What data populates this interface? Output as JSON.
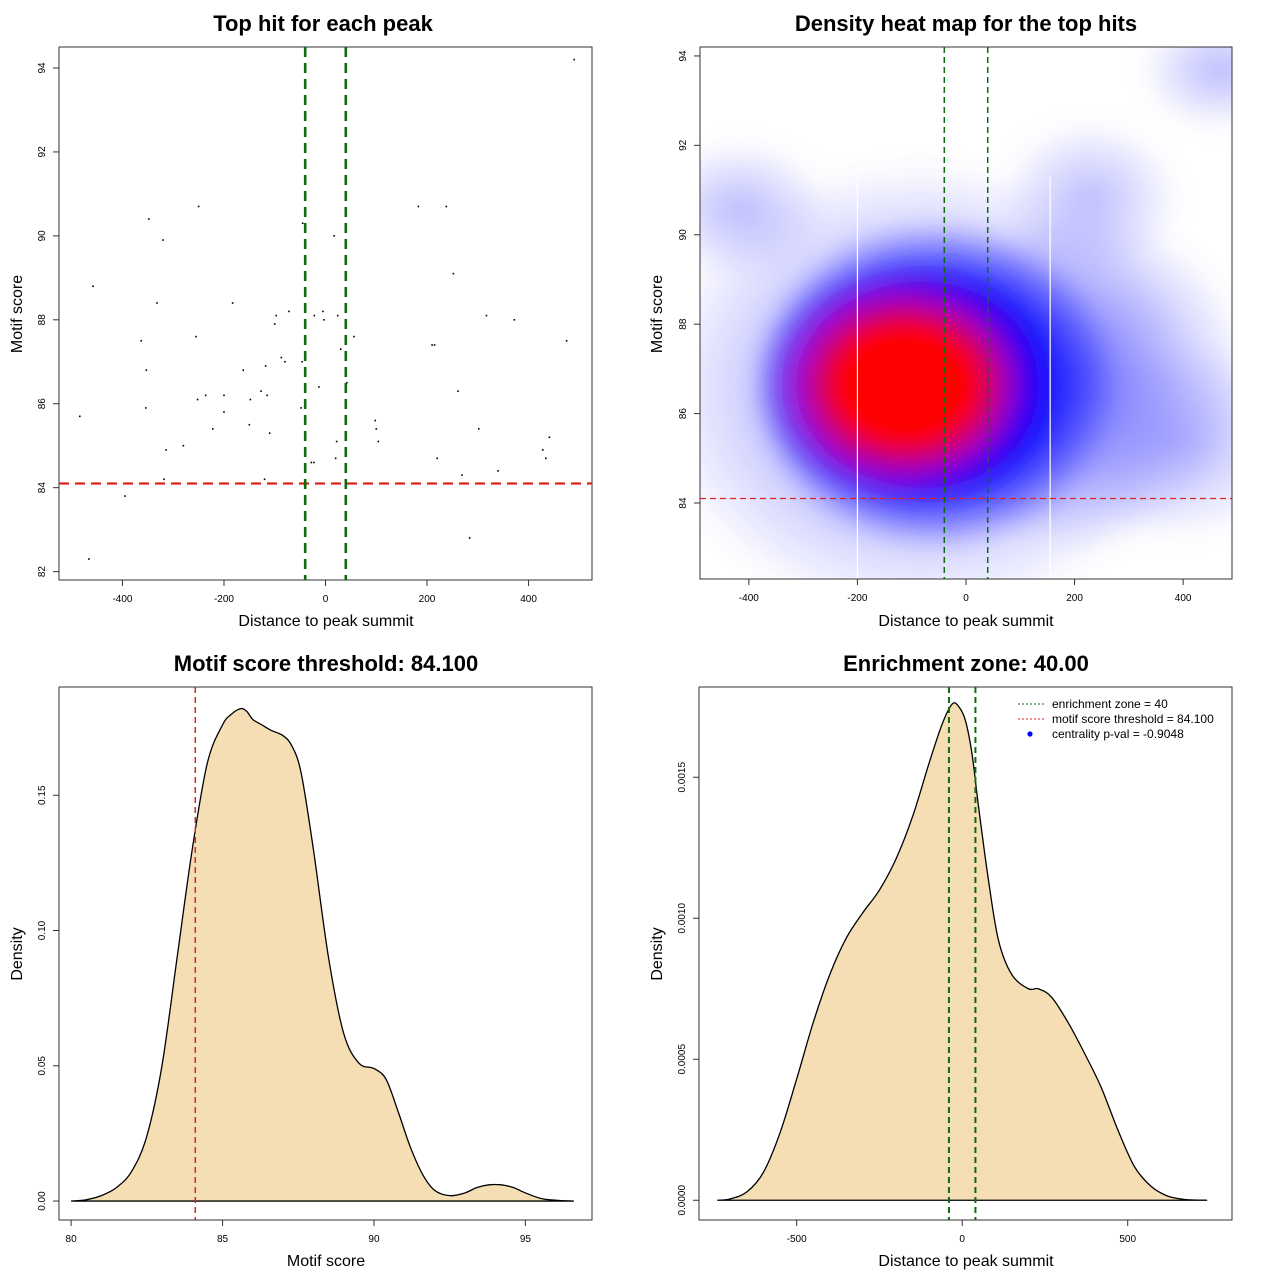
{
  "colors": {
    "threshold_line": "#dd2222",
    "zone_line": "#0f6b0f",
    "density_fill": "#f5deb3",
    "heat_low": "#ffffff",
    "heat_mid": "#0000ff",
    "heat_high": "#ff0000",
    "points": "#000000",
    "centrality_point": "#0000ff"
  },
  "chart_data": [
    {
      "type": "scatter",
      "title": "Top hit for each peak",
      "xlabel": "Distance to peak summit",
      "ylabel": "Motif score",
      "xlim": [
        -525,
        525
      ],
      "ylim": [
        81.8,
        94.5
      ],
      "xticks": [
        -400,
        -200,
        0,
        200,
        400
      ],
      "yticks": [
        82,
        84,
        86,
        88,
        90,
        92,
        94
      ],
      "xtick_labels": [
        "-400",
        "-200",
        "0",
        "200",
        "400"
      ],
      "ytick_labels": [
        "82",
        "84",
        "86",
        "88",
        "90",
        "92",
        "94"
      ],
      "hline": 84.1,
      "vlines": [
        -40,
        40
      ],
      "points": [
        [
          490,
          94.2
        ],
        [
          -250,
          90.7
        ],
        [
          183,
          90.7
        ],
        [
          238,
          90.7
        ],
        [
          -348,
          90.4
        ],
        [
          -320,
          89.9
        ],
        [
          17,
          90.0
        ],
        [
          -45,
          90.3
        ],
        [
          252,
          89.1
        ],
        [
          -458,
          88.8
        ],
        [
          -332,
          88.4
        ],
        [
          -183,
          88.4
        ],
        [
          -97,
          88.1
        ],
        [
          -100,
          87.9
        ],
        [
          -72,
          88.2
        ],
        [
          -22,
          88.1
        ],
        [
          -5,
          88.2
        ],
        [
          -3,
          88.0
        ],
        [
          24,
          88.1
        ],
        [
          56,
          87.6
        ],
        [
          317,
          88.1
        ],
        [
          372,
          88.0
        ],
        [
          -363,
          87.5
        ],
        [
          -255,
          87.6
        ],
        [
          -87,
          87.1
        ],
        [
          -80,
          87.0
        ],
        [
          -46,
          87.0
        ],
        [
          30,
          87.3
        ],
        [
          210,
          87.4
        ],
        [
          215,
          87.4
        ],
        [
          475,
          87.5
        ],
        [
          -353,
          86.8
        ],
        [
          -162,
          86.8
        ],
        [
          -118,
          86.9
        ],
        [
          -200,
          86.2
        ],
        [
          -236,
          86.2
        ],
        [
          -127,
          86.3
        ],
        [
          -148,
          86.1
        ],
        [
          -252,
          86.1
        ],
        [
          -115,
          86.2
        ],
        [
          -13,
          86.4
        ],
        [
          42,
          86.5
        ],
        [
          261,
          86.3
        ],
        [
          -354,
          85.9
        ],
        [
          -48,
          85.9
        ],
        [
          -200,
          85.8
        ],
        [
          -484,
          85.7
        ],
        [
          -222,
          85.4
        ],
        [
          -110,
          85.3
        ],
        [
          -150,
          85.5
        ],
        [
          98,
          85.6
        ],
        [
          100,
          85.4
        ],
        [
          104,
          85.1
        ],
        [
          22,
          85.1
        ],
        [
          302,
          85.4
        ],
        [
          441,
          85.2
        ],
        [
          -314,
          84.9
        ],
        [
          -280,
          85.0
        ],
        [
          428,
          84.9
        ],
        [
          434,
          84.7
        ],
        [
          20,
          84.7
        ],
        [
          -28,
          84.6
        ],
        [
          -23,
          84.6
        ],
        [
          220,
          84.7
        ],
        [
          340,
          84.4
        ],
        [
          269,
          84.3
        ],
        [
          -318,
          84.2
        ],
        [
          -120,
          84.2
        ],
        [
          -395,
          83.8
        ],
        [
          284,
          82.8
        ],
        [
          -466,
          82.3
        ]
      ]
    },
    {
      "type": "heatmap",
      "title": "Density heat map for the top hits",
      "xlabel": "Distance to peak summit",
      "ylabel": "Motif score",
      "xlim": [
        -490,
        490
      ],
      "ylim": [
        82.3,
        94.2
      ],
      "xticks": [
        -400,
        -200,
        0,
        200,
        400
      ],
      "yticks": [
        84,
        86,
        88,
        90,
        92,
        94
      ],
      "xtick_labels": [
        "-400",
        "-200",
        "0",
        "200",
        "400"
      ],
      "ytick_labels": [
        "84",
        "86",
        "88",
        "90",
        "92",
        "94"
      ],
      "hline": 84.1,
      "vlines": [
        -40,
        40
      ],
      "white_vlines": [
        -200,
        155
      ],
      "color_scale": [
        "white",
        "blue",
        "red"
      ]
    },
    {
      "type": "area",
      "title": "Motif score threshold: 84.100",
      "xlabel": "Motif score",
      "ylabel": "Density",
      "xlim": [
        79.6,
        97.2
      ],
      "ylim": [
        -0.007,
        0.19
      ],
      "xticks": [
        80,
        85,
        90,
        95
      ],
      "yticks": [
        0.0,
        0.05,
        0.1,
        0.15
      ],
      "xtick_labels": [
        "80",
        "85",
        "90",
        "95"
      ],
      "ytick_labels": [
        "0.00",
        "0.05",
        "0.10",
        "0.15"
      ],
      "vline": 84.1,
      "x": [
        80.0,
        80.5,
        81.0,
        81.5,
        82.0,
        82.5,
        83.0,
        83.5,
        84.0,
        84.5,
        85.0,
        85.3,
        85.6,
        85.8,
        86.0,
        86.3,
        86.6,
        87.0,
        87.3,
        87.6,
        88.0,
        88.5,
        89.0,
        89.5,
        90.0,
        90.4,
        90.8,
        91.2,
        91.6,
        92.0,
        92.5,
        93.0,
        93.4,
        93.8,
        94.2,
        94.6,
        95.0,
        95.5,
        96.0,
        96.6
      ],
      "y": [
        0.0,
        0.0005,
        0.002,
        0.005,
        0.011,
        0.024,
        0.05,
        0.09,
        0.13,
        0.162,
        0.176,
        0.18,
        0.182,
        0.181,
        0.178,
        0.176,
        0.174,
        0.172,
        0.168,
        0.158,
        0.13,
        0.09,
        0.062,
        0.051,
        0.049,
        0.045,
        0.033,
        0.02,
        0.01,
        0.004,
        0.002,
        0.003,
        0.005,
        0.006,
        0.006,
        0.005,
        0.003,
        0.001,
        0.0003,
        0.0
      ]
    },
    {
      "type": "area",
      "title": "Enrichment zone: 40.00",
      "xlabel": "Distance to peak summit",
      "ylabel": "Density",
      "xlim": [
        -795,
        815
      ],
      "ylim": [
        -7e-05,
        0.00182
      ],
      "xticks": [
        -500,
        0,
        500
      ],
      "yticks": [
        0.0,
        0.0005,
        0.001,
        0.0015
      ],
      "xtick_labels": [
        "-500",
        "0",
        "500"
      ],
      "ytick_labels": [
        "0.0000",
        "0.0005",
        "0.0010",
        "0.0015"
      ],
      "vlines": [
        -40,
        40
      ],
      "x": [
        -740,
        -700,
        -650,
        -600,
        -550,
        -500,
        -450,
        -400,
        -350,
        -300,
        -250,
        -200,
        -150,
        -100,
        -60,
        -30,
        -10,
        10,
        30,
        50,
        80,
        110,
        150,
        200,
        230,
        270,
        320,
        370,
        420,
        470,
        520,
        570,
        620,
        670,
        700,
        740
      ],
      "y": [
        0.0,
        5e-06,
        3e-05,
        0.0001,
        0.00024,
        0.00043,
        0.00063,
        0.0008,
        0.00093,
        0.00102,
        0.0011,
        0.00121,
        0.00136,
        0.00155,
        0.00169,
        0.00176,
        0.00175,
        0.0017,
        0.00158,
        0.00139,
        0.00113,
        0.00092,
        0.0008,
        0.00075,
        0.00075,
        0.00072,
        0.00063,
        0.00052,
        0.0004,
        0.00025,
        0.00012,
        5e-05,
        1.5e-05,
        3e-06,
        1e-06,
        0.0
      ],
      "legend": [
        {
          "label": "enrichment zone = 40",
          "style": "dotted-line",
          "color": "#0f6b0f"
        },
        {
          "label": "motif score threshold = 84.100",
          "style": "dotted-line",
          "color": "#dd2222"
        },
        {
          "label": "centrality p-val = -0.9048",
          "style": "point",
          "color": "#0000ff"
        }
      ],
      "legend_position": "top-right"
    }
  ]
}
